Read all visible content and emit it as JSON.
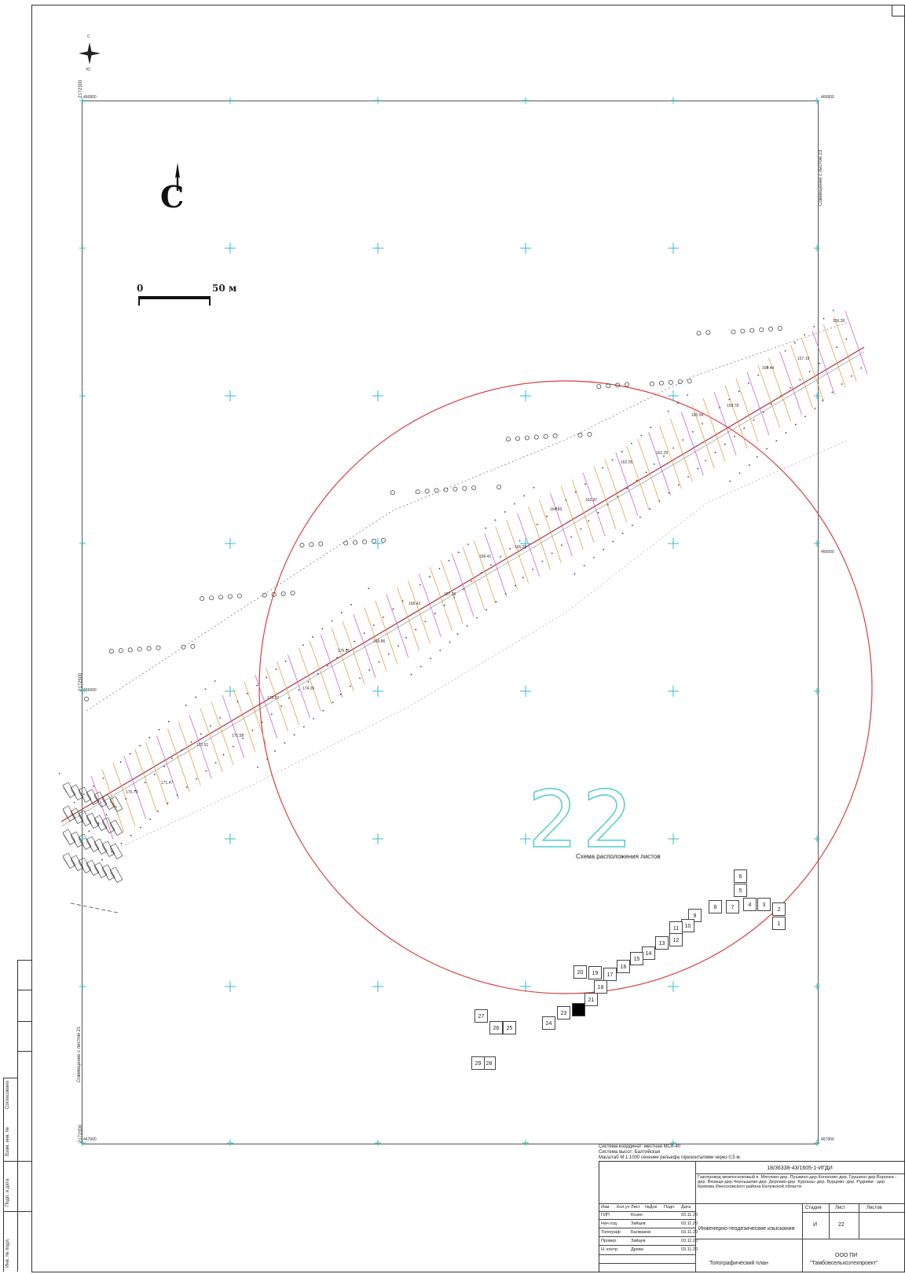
{
  "map": {
    "north_arrow_small_letters": {
      "top": "С",
      "bottom": "Ю"
    },
    "north_label": "С",
    "scale_bar": {
      "zero": "0",
      "end": "50 м"
    },
    "sheet_number_big": "22",
    "sheet_scheme_title": "Схема расположения листов",
    "grid_values": {
      "top_left": "466800",
      "top_right": "466800",
      "mid_left": "466600",
      "mid_right": "466600",
      "bottom_left": "467900",
      "bottom_right": "467900",
      "left_top": "2172300",
      "left_mid": "2172500",
      "left_bottom": "2172300"
    },
    "side_note_right": "Совмещение с листом 23",
    "side_note_left": "Совмещение с листом 21",
    "sheets": [
      {
        "n": "1"
      },
      {
        "n": "2"
      },
      {
        "n": "3"
      },
      {
        "n": "4"
      },
      {
        "n": "5"
      },
      {
        "n": "6"
      },
      {
        "n": "7"
      },
      {
        "n": "8"
      },
      {
        "n": "9"
      },
      {
        "n": "10"
      },
      {
        "n": "11"
      },
      {
        "n": "12"
      },
      {
        "n": "13"
      },
      {
        "n": "14"
      },
      {
        "n": "15"
      },
      {
        "n": "16"
      },
      {
        "n": "17"
      },
      {
        "n": "18"
      },
      {
        "n": "19"
      },
      {
        "n": "20"
      },
      {
        "n": "21"
      },
      {
        "n": "22"
      },
      {
        "n": "23"
      },
      {
        "n": "24"
      },
      {
        "n": "25"
      },
      {
        "n": "26"
      },
      {
        "n": "27"
      },
      {
        "n": "28"
      },
      {
        "n": "29"
      }
    ],
    "elevation_labels": [
      "170.73",
      "171.47",
      "172.51",
      "171.58",
      "173.57",
      "174.26",
      "175.01",
      "169.86",
      "168.42",
      "167.38",
      "166.41",
      "165.29",
      "164.83",
      "163.97",
      "162.05",
      "161.29",
      "160.54",
      "159.78",
      "158.44",
      "157.19",
      "156.39"
    ]
  },
  "notes": {
    "line1": "Система координат: местная МСК-40",
    "line2": "Система высот: Балтийская",
    "line3": "Масштаб М 1:1000 сечение рельефа горизонталями через 0,5 м."
  },
  "stamp": {
    "code": "18/36338-43/1605-1-ИГДИ",
    "object": "Газопровод межпоселковый п. Мятлево-дер. Пушкино-дер.Кононово-дер. Грушино-дер.Воронки - дер. Вязище-дер.Чернышево-дер. Дернево-дер. Курганы- дер. Бурцево- дер. Рудники - дер. Крикова Износковского района Калужской области",
    "headers": {
      "izm": "Изм.",
      "kol": "Кол.уч",
      "list": "Лист",
      "ndok": "№Док",
      "podp": "Подп.",
      "data": "Дата"
    },
    "roles": [
      {
        "role": "ГИП",
        "name": "Козин",
        "date": "03.11.20"
      },
      {
        "role": "Нач.отд.",
        "name": "Зайцев",
        "date": "03.11.20"
      },
      {
        "role": "Топограф",
        "name": "Балмаков",
        "date": "03.11.20"
      },
      {
        "role": "Провер.",
        "name": "Зайцев",
        "date": "03.11.20"
      },
      {
        "role": "Н. контр.",
        "name": "Древа",
        "date": "03.11.20"
      }
    ],
    "work_type": "Инженерно-геодезические изыскания",
    "stage_label": "Стадия",
    "list_label": "Лист",
    "lists_label": "Листов",
    "stage": "И",
    "list": "22",
    "lists": "",
    "doc_title": "Топографический план",
    "company_line1": "ООО ПИ",
    "company_line2": "\"Тамбовсельхозтехпроект\""
  },
  "side_stamp": {
    "c1": "Инв. № подл.",
    "c2": "Подп. и дата",
    "c3": "Взам. инв. №",
    "c4": "Согласовано"
  },
  "colors": {
    "boundary_circle": "#d84040",
    "contour_orange": "#e0a050",
    "contour_pink": "#cc66cc",
    "grid_cross": "#33bbcc",
    "sheet_number": "#55cccc"
  }
}
